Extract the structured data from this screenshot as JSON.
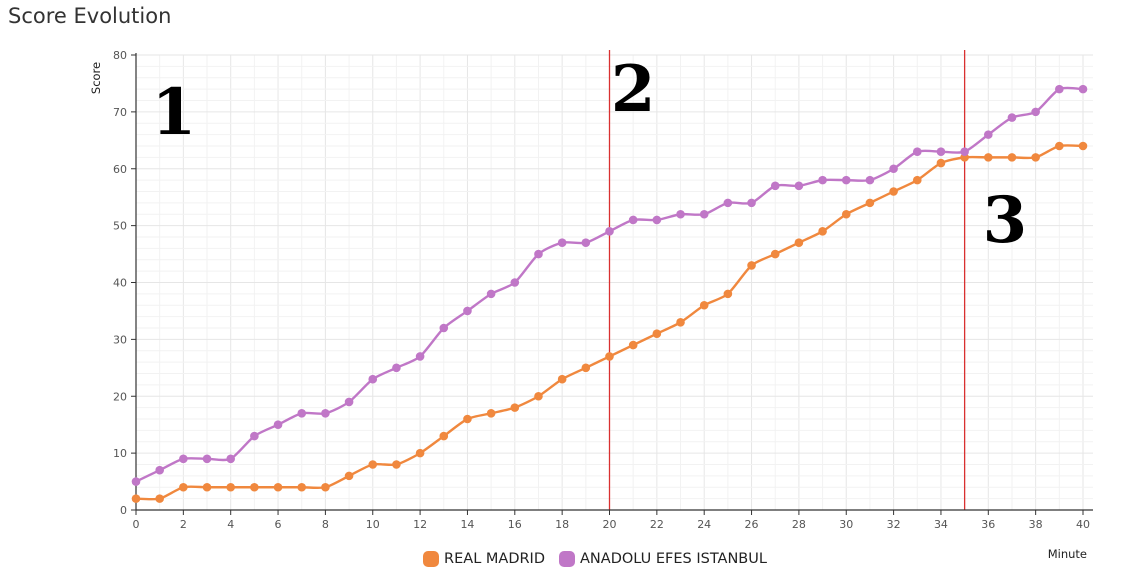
{
  "chart_data": {
    "type": "line",
    "title": "Score Evolution",
    "xlabel": "Minute",
    "ylabel": "Score",
    "xlim": [
      0,
      40
    ],
    "ylim": [
      0,
      80
    ],
    "xticks": [
      0,
      2,
      4,
      6,
      8,
      10,
      12,
      14,
      16,
      18,
      20,
      22,
      24,
      26,
      28,
      30,
      32,
      34,
      36,
      38,
      40
    ],
    "yticks": [
      0,
      10,
      20,
      30,
      40,
      50,
      60,
      70,
      80
    ],
    "grid": true,
    "legend_position": "bottom",
    "x": [
      0,
      1,
      2,
      3,
      4,
      5,
      6,
      7,
      8,
      9,
      10,
      11,
      12,
      13,
      14,
      15,
      16,
      17,
      18,
      19,
      20,
      21,
      22,
      23,
      24,
      25,
      26,
      27,
      28,
      29,
      30,
      31,
      32,
      33,
      34,
      35,
      36,
      37,
      38,
      39,
      40
    ],
    "series": [
      {
        "name": "REAL MADRID",
        "color": "#f0883e",
        "values": [
          2,
          2,
          4,
          4,
          4,
          4,
          4,
          4,
          4,
          6,
          8,
          8,
          10,
          13,
          16,
          17,
          18,
          20,
          23,
          25,
          27,
          29,
          31,
          33,
          36,
          38,
          43,
          45,
          47,
          49,
          52,
          54,
          56,
          58,
          61,
          62,
          62,
          62,
          62,
          64,
          64
        ]
      },
      {
        "name": "ANADOLU EFES ISTANBUL",
        "color": "#c077c7",
        "values": [
          5,
          7,
          9,
          9,
          9,
          13,
          15,
          17,
          17,
          19,
          23,
          25,
          27,
          32,
          35,
          38,
          40,
          45,
          47,
          47,
          49,
          51,
          51,
          52,
          52,
          54,
          54,
          57,
          57,
          58,
          58,
          58,
          60,
          63,
          63,
          63,
          66,
          69,
          70,
          74,
          74
        ]
      }
    ],
    "vertical_markers": [
      {
        "x": 20,
        "color": "#d93030"
      },
      {
        "x": 35,
        "color": "#d93030"
      }
    ],
    "annotations": [
      {
        "text": "1",
        "at_x": 1.6,
        "at_y": 70
      },
      {
        "text": "2",
        "at_x": 21.0,
        "at_y": 74
      },
      {
        "text": "3",
        "at_x": 36.7,
        "at_y": 51
      }
    ]
  }
}
